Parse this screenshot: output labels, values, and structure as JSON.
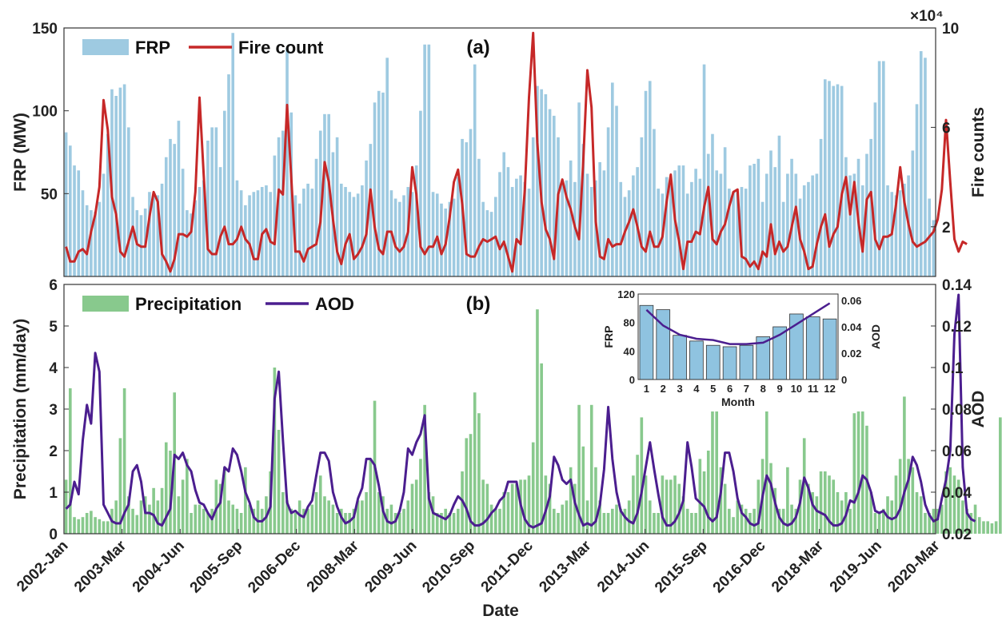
{
  "chart_data": [
    {
      "panel": "(a)",
      "type": "bar+line",
      "legend": [
        "FRP",
        "Fire count"
      ],
      "ylabel_left": "FRP (MW)",
      "ylabel_right": "Fire counts",
      "right_multiplier": "×10⁴",
      "ylim_left": [
        0,
        150
      ],
      "ylim_right": [
        0,
        10
      ],
      "yticks_left": [
        "50",
        "100",
        "150"
      ],
      "yticks_right": [
        "2",
        "6",
        "10"
      ],
      "start": "2002-01",
      "series": [
        {
          "name": "FRP",
          "color": "#9ecae1",
          "values": [
            87,
            79,
            67,
            64,
            52,
            43,
            40,
            39,
            45,
            62,
            86,
            113,
            109,
            114,
            116,
            90,
            48,
            40,
            37,
            41,
            51,
            50,
            49,
            56,
            72,
            83,
            80,
            94,
            65,
            40,
            38,
            46,
            54,
            58,
            82,
            90,
            90,
            66,
            100,
            122,
            147,
            58,
            52,
            43,
            49,
            51,
            52,
            54,
            55,
            51,
            73,
            84,
            88,
            138,
            99,
            49,
            44,
            53,
            56,
            53,
            71,
            88,
            98,
            98,
            75,
            84,
            56,
            54,
            51,
            48,
            50,
            55,
            70,
            80,
            105,
            112,
            111,
            132,
            52,
            47,
            45,
            49,
            54,
            51,
            67,
            100,
            140,
            140,
            51,
            50,
            44,
            41,
            45,
            47,
            60,
            83,
            81,
            89,
            128,
            71,
            45,
            40,
            39,
            48,
            63,
            75,
            66,
            54,
            59,
            61,
            57,
            53,
            84,
            115,
            113,
            110,
            101,
            97,
            84,
            57,
            58,
            70,
            57,
            105,
            80,
            62,
            54,
            58,
            69,
            64,
            90,
            117,
            103,
            57,
            48,
            52,
            61,
            66,
            84,
            112,
            118,
            89,
            53,
            50,
            60,
            55,
            64,
            67,
            67,
            50,
            57,
            65,
            59,
            128,
            74,
            86,
            64,
            62,
            78,
            53,
            51,
            51,
            54,
            53,
            67,
            68,
            71,
            45,
            62,
            76,
            66,
            85,
            45,
            62,
            71,
            62,
            47,
            55,
            57,
            61,
            62,
            83,
            119,
            118,
            115,
            116,
            115,
            72,
            61,
            62,
            71,
            55,
            74,
            83,
            105,
            130,
            130,
            55,
            51,
            49,
            52,
            56,
            61,
            76,
            104,
            136,
            132,
            47,
            34
          ]
        },
        {
          "name": "Fire count",
          "color": "#c62828",
          "values": [
            1.2,
            0.6,
            0.6,
            1.0,
            1.1,
            0.9,
            1.8,
            2.5,
            3.6,
            7.1,
            5.9,
            3.2,
            2.5,
            1.0,
            0.8,
            1.4,
            2.0,
            1.3,
            1.2,
            1.2,
            2.4,
            3.4,
            3.0,
            0.9,
            0.6,
            0.2,
            0.7,
            1.7,
            1.7,
            1.6,
            1.8,
            3.4,
            7.2,
            4.1,
            1.1,
            0.9,
            0.9,
            1.6,
            2.0,
            1.3,
            1.3,
            1.5,
            2.0,
            1.5,
            1.3,
            0.7,
            0.7,
            1.7,
            1.9,
            1.4,
            1.3,
            3.5,
            3.3,
            6.9,
            4.0,
            1.0,
            1.0,
            0.6,
            1.1,
            1.2,
            1.3,
            2.2,
            4.6,
            3.8,
            2.3,
            1.0,
            0.5,
            1.3,
            1.7,
            0.7,
            0.9,
            1.2,
            1.7,
            3.5,
            2.0,
            1.1,
            0.9,
            1.8,
            1.8,
            1.2,
            1.0,
            1.2,
            1.8,
            4.4,
            3.3,
            1.2,
            0.9,
            1.2,
            1.2,
            1.6,
            0.9,
            1.3,
            2.4,
            3.8,
            4.3,
            2.9,
            0.9,
            0.8,
            0.8,
            1.2,
            1.5,
            1.4,
            1.5,
            1.6,
            1.1,
            1.4,
            0.8,
            0.2,
            1.5,
            1.3,
            3.5,
            7.2,
            9.8,
            5.4,
            3.0,
            1.9,
            1.5,
            0.7,
            3.3,
            3.9,
            3.2,
            2.7,
            2.0,
            1.5,
            4.6,
            8.3,
            6.8,
            2.2,
            0.8,
            0.7,
            1.5,
            1.2,
            1.3,
            1.3,
            1.8,
            2.2,
            2.7,
            2.0,
            1.2,
            1.0,
            1.8,
            1.2,
            1.2,
            1.6,
            3.0,
            4.1,
            2.3,
            1.4,
            0.3,
            1.4,
            1.4,
            1.8,
            1.7,
            2.8,
            3.6,
            1.5,
            1.3,
            1.8,
            2.1,
            2.8,
            3.4,
            3.5,
            0.8,
            0.7,
            0.4,
            0.6,
            0.3,
            1.0,
            0.8,
            2.1,
            0.9,
            1.4,
            1.0,
            1.2,
            2.0,
            2.8,
            1.5,
            1.0,
            0.3,
            0.4,
            1.3,
            2.0,
            2.5,
            1.2,
            1.7,
            2.0,
            3.3,
            4.0,
            2.5,
            3.8,
            2.2,
            1.0,
            3.1,
            3.4,
            1.5,
            1.1,
            1.6,
            1.6,
            1.7,
            2.9,
            4.4,
            3.0,
            2.1,
            1.4,
            1.2,
            1.3,
            1.4,
            1.6,
            1.8,
            2.3,
            3.5,
            6.3,
            3.8,
            1.5,
            1.0,
            1.4,
            1.3
          ]
        }
      ]
    },
    {
      "panel": "(b)",
      "type": "bar+line",
      "legend": [
        "Precipitation",
        "AOD"
      ],
      "ylabel_left": "Precipitation (mm/day)",
      "ylabel_right": "AOD",
      "ylim_left": [
        0,
        6
      ],
      "ylim_right": [
        0.02,
        0.14
      ],
      "yticks_left": [
        "0",
        "1",
        "2",
        "3",
        "4",
        "5",
        "6"
      ],
      "yticks_right": [
        "0.02",
        "0.04",
        "0.06",
        "0.08",
        "0.1",
        "0.12",
        "0.14"
      ],
      "series": [
        {
          "name": "Precipitation",
          "color": "#88c98d",
          "values": [
            1.3,
            3.5,
            0.4,
            0.35,
            0.4,
            0.5,
            0.55,
            0.4,
            0.35,
            0.3,
            0.3,
            0.6,
            0.8,
            2.3,
            3.5,
            0.9,
            0.6,
            0.45,
            0.8,
            0.9,
            0.7,
            1.1,
            0.8,
            1.1,
            2.2,
            2.0,
            3.4,
            0.9,
            1.3,
            1.8,
            0.5,
            0.7,
            0.7,
            0.6,
            0.5,
            0.6,
            1.3,
            1.2,
            1.6,
            0.8,
            0.7,
            0.6,
            0.5,
            1.6,
            0.7,
            0.6,
            0.8,
            0.6,
            0.9,
            1.5,
            4.0,
            2.5,
            1.0,
            0.8,
            0.6,
            0.5,
            0.8,
            0.6,
            0.6,
            0.7,
            1.0,
            1.4,
            0.9,
            0.8,
            0.7,
            0.5,
            0.6,
            0.5,
            0.5,
            0.6,
            0.8,
            0.8,
            1.0,
            1.8,
            3.2,
            1.0,
            0.9,
            0.6,
            0.7,
            0.5,
            0.5,
            0.6,
            0.8,
            1.2,
            1.3,
            1.8,
            3.1,
            1.0,
            0.9,
            0.5,
            0.5,
            0.6,
            0.5,
            0.5,
            0.6,
            1.5,
            2.3,
            2.4,
            3.4,
            2.9,
            1.3,
            1.2,
            0.7,
            0.6,
            0.6,
            1.0,
            1.0,
            1.2,
            1.2,
            1.3,
            1.3,
            1.4,
            2.2,
            5.4,
            4.1,
            1.4,
            1.2,
            0.6,
            0.5,
            0.7,
            0.8,
            1.6,
            1.2,
            3.1,
            2.1,
            0.8,
            3.1,
            1.6,
            0.8,
            0.5,
            0.5,
            0.6,
            0.7,
            0.6,
            0.6,
            0.8,
            1.4,
            1.9,
            2.8,
            1.4,
            0.8,
            0.5,
            0.5,
            1.4,
            1.3,
            1.3,
            1.4,
            1.2,
            0.9,
            0.6,
            0.5,
            0.5,
            1.8,
            1.5,
            2.0,
            3.2,
            3.3,
            1.6,
            1.2,
            0.6,
            0.4,
            0.8,
            0.7,
            0.6,
            0.5,
            0.6,
            1.3,
            1.8,
            3.5,
            1.7,
            1.1,
            0.6,
            0.6,
            1.6,
            0.7,
            0.6,
            1.3,
            2.3,
            1.2,
            1.0,
            0.9,
            1.5,
            1.5,
            1.4,
            1.3,
            1.0,
            0.8,
            1.0,
            0.6,
            2.9,
            3.4,
            3.0,
            2.6,
            1.0,
            0.5,
            0.5,
            0.6,
            0.9,
            0.8,
            1.4,
            1.8,
            3.3,
            1.8,
            1.6,
            1.0,
            0.9,
            0.5,
            0.5,
            0.6,
            0.6,
            0.7,
            1.5,
            1.6,
            1.4,
            1.3,
            0.8,
            0.6,
            0.5,
            0.7,
            0.4,
            0.3,
            0.3,
            0.25,
            0.3,
            2.8,
            1.3,
            0.7,
            0.7
          ]
        },
        {
          "name": "AOD",
          "color": "#4b1e8f",
          "values": [
            0.032,
            0.034,
            0.045,
            0.039,
            0.065,
            0.082,
            0.073,
            0.107,
            0.098,
            0.034,
            0.03,
            0.026,
            0.025,
            0.025,
            0.03,
            0.034,
            0.05,
            0.053,
            0.045,
            0.03,
            0.03,
            0.029,
            0.025,
            0.024,
            0.028,
            0.032,
            0.058,
            0.056,
            0.059,
            0.053,
            0.05,
            0.041,
            0.035,
            0.034,
            0.03,
            0.027,
            0.032,
            0.035,
            0.052,
            0.05,
            0.061,
            0.058,
            0.05,
            0.04,
            0.035,
            0.028,
            0.026,
            0.026,
            0.028,
            0.033,
            0.085,
            0.098,
            0.065,
            0.035,
            0.03,
            0.031,
            0.029,
            0.028,
            0.033,
            0.036,
            0.048,
            0.059,
            0.059,
            0.055,
            0.04,
            0.033,
            0.028,
            0.025,
            0.026,
            0.028,
            0.037,
            0.042,
            0.056,
            0.056,
            0.053,
            0.043,
            0.031,
            0.026,
            0.025,
            0.026,
            0.031,
            0.04,
            0.061,
            0.058,
            0.064,
            0.068,
            0.077,
            0.037,
            0.03,
            0.029,
            0.028,
            0.027,
            0.029,
            0.034,
            0.038,
            0.036,
            0.032,
            0.026,
            0.024,
            0.024,
            0.025,
            0.027,
            0.03,
            0.032,
            0.036,
            0.038,
            0.045,
            0.045,
            0.045,
            0.034,
            0.027,
            0.024,
            0.023,
            0.024,
            0.025,
            0.031,
            0.038,
            0.057,
            0.053,
            0.046,
            0.044,
            0.046,
            0.035,
            0.029,
            0.024,
            0.025,
            0.024,
            0.026,
            0.034,
            0.051,
            0.081,
            0.056,
            0.04,
            0.031,
            0.028,
            0.026,
            0.025,
            0.03,
            0.04,
            0.052,
            0.064,
            0.051,
            0.039,
            0.028,
            0.024,
            0.024,
            0.026,
            0.03,
            0.036,
            0.064,
            0.052,
            0.037,
            0.035,
            0.033,
            0.028,
            0.026,
            0.028,
            0.04,
            0.059,
            0.059,
            0.05,
            0.037,
            0.03,
            0.028,
            0.025,
            0.024,
            0.025,
            0.038,
            0.048,
            0.044,
            0.035,
            0.028,
            0.025,
            0.024,
            0.025,
            0.028,
            0.035,
            0.047,
            0.042,
            0.034,
            0.031,
            0.03,
            0.029,
            0.026,
            0.024,
            0.024,
            0.025,
            0.029,
            0.036,
            0.035,
            0.04,
            0.048,
            0.046,
            0.04,
            0.031,
            0.03,
            0.031,
            0.028,
            0.027,
            0.028,
            0.032,
            0.04,
            0.046,
            0.057,
            0.053,
            0.045,
            0.034,
            0.029,
            0.026,
            0.027,
            0.037,
            0.046,
            0.06,
            0.116,
            0.135,
            0.052,
            0.03,
            0.027,
            0.026
          ]
        }
      ],
      "xlabel": "Date",
      "xticks": [
        "2002-Jan",
        "2003-Mar",
        "2004-Jun",
        "2005-Sep",
        "2006-Dec",
        "2008-Mar",
        "2009-Jun",
        "2010-Sep",
        "2011-Dec",
        "2013-Mar",
        "2014-Jun",
        "2015-Sep",
        "2016-Dec",
        "2018-Mar",
        "2019-Jun",
        "2020-Mar"
      ]
    },
    {
      "panel": "inset",
      "type": "bar+line",
      "xlabel": "Month",
      "ylabel_left": "FRP",
      "ylabel_right": "AOD",
      "categories": [
        "1",
        "2",
        "3",
        "4",
        "5",
        "6",
        "7",
        "8",
        "9",
        "10",
        "11",
        "12"
      ],
      "ylim_left": [
        0,
        120
      ],
      "ylim_right": [
        0,
        0.065
      ],
      "yticks_left": [
        "0",
        "40",
        "80",
        "120"
      ],
      "yticks_right": [
        "0",
        "0.02",
        "0.04",
        "0.06"
      ],
      "series": [
        {
          "name": "FRP",
          "color": "#8fc3e0",
          "values": [
            104,
            98,
            62,
            54,
            48,
            46,
            48,
            60,
            74,
            92,
            88,
            85
          ]
        },
        {
          "name": "AOD",
          "color": "#4b1e8f",
          "values": [
            0.053,
            0.041,
            0.034,
            0.031,
            0.03,
            0.027,
            0.027,
            0.028,
            0.034,
            0.042,
            0.05,
            0.058
          ]
        }
      ]
    }
  ]
}
